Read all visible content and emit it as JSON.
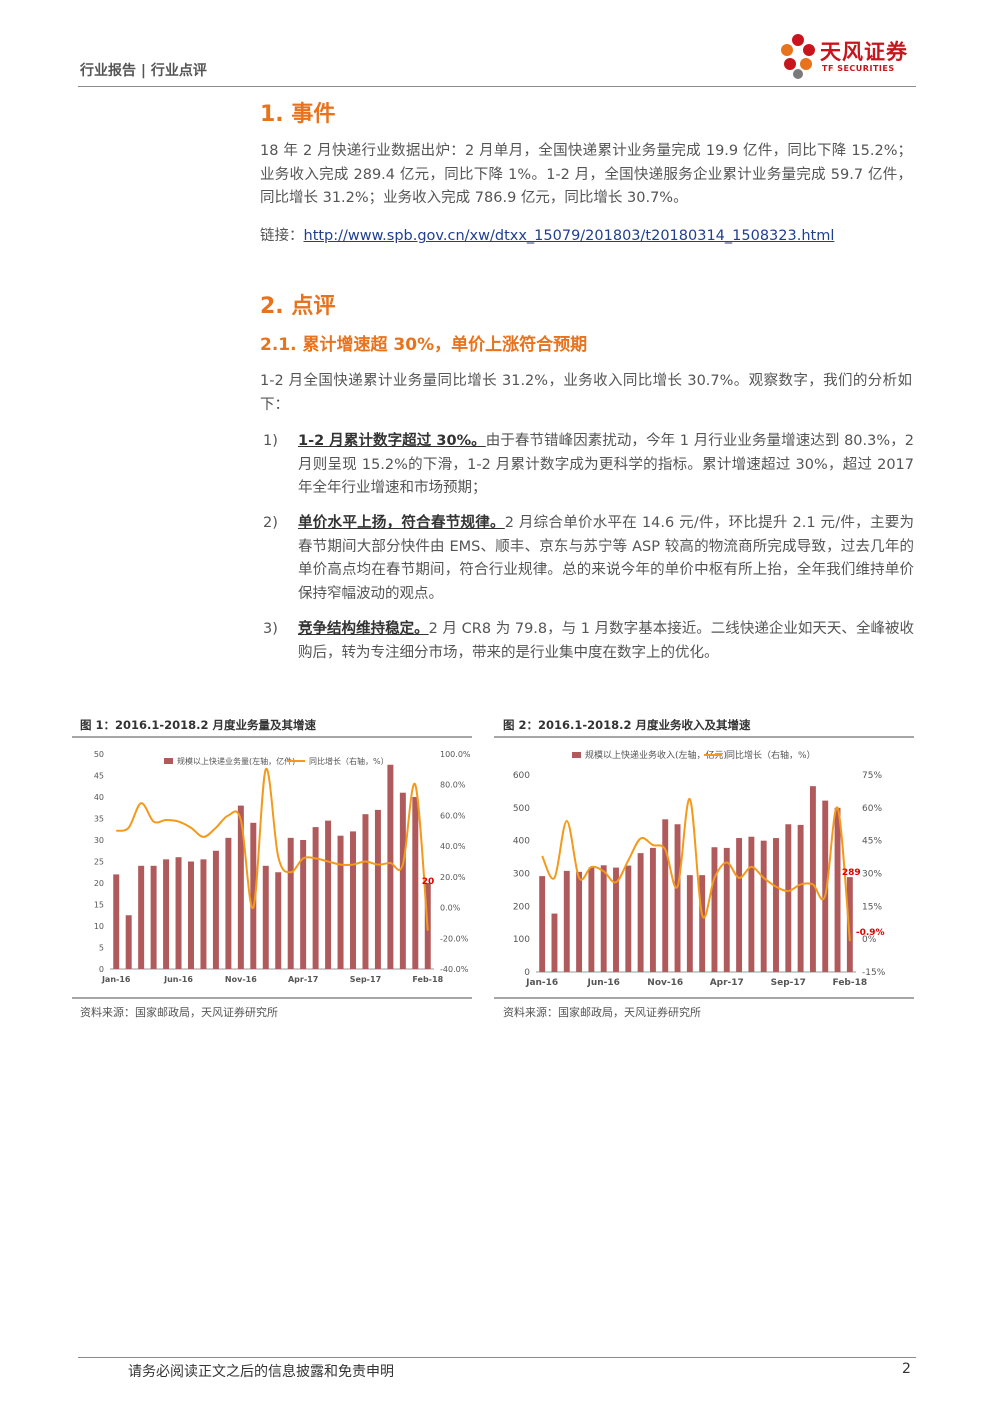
{
  "header": {
    "category": "行业报告 | 行业点评",
    "logo_cn": "天风证券",
    "logo_en": "TF SECURITIES"
  },
  "section1": {
    "heading": "1. 事件",
    "para": "18 年 2 月快递行业数据出炉：2 月单月，全国快递累计业务量完成 19.9 亿件，同比下降 15.2%；业务收入完成 289.4 亿元，同比下降 1%。1-2 月，全国快递服务企业累计业务量完成 59.7 亿件，同比增长 31.2%；业务收入完成 786.9 亿元，同比增长 30.7%。",
    "link_label": "链接：",
    "link_url": "http://www.spb.gov.cn/xw/dtxx_15079/201803/t20180314_1508323.html"
  },
  "section2": {
    "heading": "2. 点评",
    "subheading": "2.1. 累计增速超 30%，单价上涨符合预期",
    "intro": "1-2 月全国快递累计业务量同比增长 31.2%，业务收入同比增长 30.7%。观察数字，我们的分析如下：",
    "items": [
      {
        "num": "1)",
        "lead": "1-2 月累计数字超过 30%。",
        "text": "由于春节错峰因素扰动，今年 1 月行业业务量增速达到 80.3%，2 月则呈现 15.2%的下滑，1-2 月累计数字成为更科学的指标。累计增速超过 30%，超过 2017 年全年行业增速和市场预期；"
      },
      {
        "num": "2)",
        "lead": "单价水平上扬，符合春节规律。",
        "text": "2 月综合单价水平在 14.6 元/件，环比提升 2.1 元/件，主要为春节期间大部分快件由 EMS、顺丰、京东与苏宁等 ASP 较高的物流商所完成导致，过去几年的单价高点均在春节期间，符合行业规律。总的来说今年的单价中枢有所上抬，全年我们维持单价保持窄幅波动的观点。"
      },
      {
        "num": "3)",
        "lead": "竞争结构维持稳定。",
        "text": "2 月 CR8 为 79.8，与 1 月数字基本接近。二线快递企业如天天、全峰被收购后，转为专注细分市场，带来的是行业集中度在数字上的优化。"
      }
    ]
  },
  "figures": {
    "fig1": {
      "title": "图 1：2016.1-2018.2 月度业务量及其增速",
      "source": "资料来源：国家邮政局，天风证券研究所"
    },
    "fig2": {
      "title": "图 2：2016.1-2018.2 月度业务收入及其增速",
      "source": "资料来源：国家邮政局，天风证券研究所"
    }
  },
  "chart_data": [
    {
      "type": "bar",
      "title": "2016.1-2018.2 月度业务量及其增速",
      "categories": [
        "Jan-16",
        "Feb-16",
        "Mar-16",
        "Apr-16",
        "May-16",
        "Jun-16",
        "Jul-16",
        "Aug-16",
        "Sep-16",
        "Oct-16",
        "Nov-16",
        "Dec-16",
        "Jan-17",
        "Feb-17",
        "Mar-17",
        "Apr-17",
        "May-17",
        "Jun-17",
        "Jul-17",
        "Aug-17",
        "Sep-17",
        "Oct-17",
        "Nov-17",
        "Dec-17",
        "Jan-18",
        "Feb-18"
      ],
      "x_tick_labels": [
        "Jan-16",
        "Jun-16",
        "Nov-16",
        "Apr-17",
        "Sep-17",
        "Feb-18"
      ],
      "series": [
        {
          "name": "规模以上快递业务量(左轴，亿件)",
          "axis": "left",
          "type": "bar",
          "values": [
            22,
            12.5,
            24,
            24,
            25.5,
            26,
            25,
            25.5,
            27.5,
            30.5,
            38,
            34,
            24,
            22.5,
            30.5,
            30,
            33,
            34.5,
            31,
            32,
            36,
            37,
            47.5,
            41,
            40,
            20
          ]
        },
        {
          "name": "同比增长（右轴，%）",
          "axis": "right",
          "type": "line",
          "values": [
            50,
            52,
            68,
            56,
            57,
            56,
            52,
            46,
            52,
            60,
            57,
            0,
            90,
            33,
            23,
            32,
            32,
            30,
            28,
            28,
            30,
            28,
            29,
            28,
            80,
            -15
          ]
        }
      ],
      "left_ticks": [
        "0",
        "5",
        "10",
        "15",
        "20",
        "25",
        "30",
        "35",
        "40",
        "45",
        "50"
      ],
      "right_ticks": [
        "-40.0%",
        "-20.0%",
        "0.0%",
        "20.0%",
        "40.0%",
        "60.0%",
        "80.0%",
        "100.0%"
      ],
      "ylim_left": [
        0,
        50
      ],
      "ylim_right": [
        -40,
        100
      ],
      "annotation": "20"
    },
    {
      "type": "bar",
      "title": "2016.1-2018.2 月度业务收入及其增速",
      "categories": [
        "Jan-16",
        "Feb-16",
        "Mar-16",
        "Apr-16",
        "May-16",
        "Jun-16",
        "Jul-16",
        "Aug-16",
        "Sep-16",
        "Oct-16",
        "Nov-16",
        "Dec-16",
        "Jan-17",
        "Feb-17",
        "Mar-17",
        "Apr-17",
        "May-17",
        "Jun-17",
        "Jul-17",
        "Aug-17",
        "Sep-17",
        "Oct-17",
        "Nov-17",
        "Dec-17",
        "Jan-18",
        "Feb-18"
      ],
      "x_tick_labels": [
        "Jan-16",
        "Jun-16",
        "Nov-16",
        "Apr-17",
        "Sep-17",
        "Feb-18"
      ],
      "series": [
        {
          "name": "规模以上快递业务收入(左轴，亿元)",
          "axis": "left",
          "type": "bar",
          "values": [
            292,
            178,
            308,
            305,
            318,
            325,
            318,
            324,
            362,
            378,
            465,
            450,
            295,
            295,
            380,
            378,
            408,
            412,
            400,
            408,
            450,
            448,
            566,
            522,
            500,
            289
          ]
        },
        {
          "name": "同比增长（右轴，%）",
          "axis": "right",
          "type": "line",
          "values": [
            38,
            28,
            54,
            28,
            33,
            31,
            26,
            36,
            46,
            43,
            41,
            24,
            64,
            11,
            28,
            35,
            28,
            33,
            28,
            24,
            22,
            25,
            25,
            20,
            60,
            -0.9
          ]
        }
      ],
      "left_ticks": [
        "0",
        "100",
        "200",
        "300",
        "400",
        "500",
        "600"
      ],
      "right_ticks": [
        "-15%",
        "0%",
        "15%",
        "30%",
        "45%",
        "60%",
        "75%"
      ],
      "ylim_left": [
        0,
        600
      ],
      "ylim_right": [
        -15,
        75
      ],
      "annotations": [
        "289",
        "-0.9%"
      ]
    }
  ],
  "footer": {
    "disclaimer": "请务必阅读正文之后的信息披露和免责申明",
    "page": "2"
  },
  "colors": {
    "accent": "#e8731c",
    "bar": "#b05a5c",
    "line": "#f39a1c",
    "brand": "#c8151d"
  }
}
